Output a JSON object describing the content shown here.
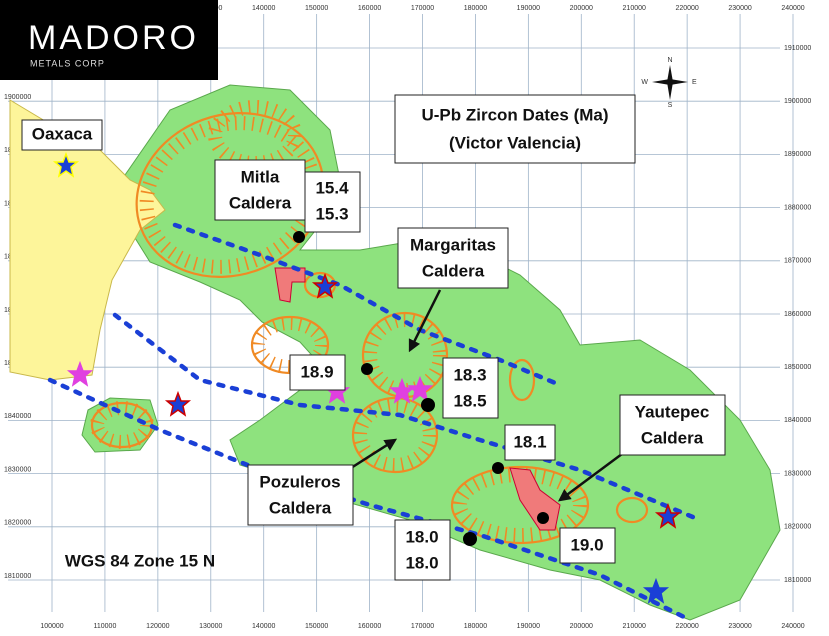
{
  "logo": {
    "name": "MADORO",
    "subtitle": "METALS CORP"
  },
  "title": {
    "line1": "U-Pb Zircon Dates (Ma)",
    "line2": "(Victor Valencia)"
  },
  "projection": "WGS 84 Zone 15 N",
  "place": "Oaxaca",
  "calderas": [
    {
      "name": "Mitla",
      "kind": "Caldera"
    },
    {
      "name": "Margaritas",
      "kind": "Caldera"
    },
    {
      "name": "Yautepec",
      "kind": "Caldera"
    },
    {
      "name": "Pozuleros",
      "kind": "Caldera"
    }
  ],
  "dates": [
    [
      "15.4",
      "15.3"
    ],
    [
      "18.9"
    ],
    [
      "18.3",
      "18.5"
    ],
    [
      "18.1"
    ],
    [
      "18.0",
      "18.0"
    ],
    [
      "19.0"
    ]
  ],
  "compass": [
    "N",
    "E",
    "S",
    "W"
  ],
  "grid": {
    "eastings": [
      100000,
      110000,
      120000,
      130000,
      140000,
      150000,
      160000,
      170000,
      180000,
      190000,
      200000,
      210000,
      220000,
      230000,
      240000
    ],
    "northings": [
      1910000,
      1900000,
      1890000,
      1880000,
      1870000,
      1860000,
      1850000,
      1840000,
      1830000,
      1820000,
      1810000
    ]
  }
}
